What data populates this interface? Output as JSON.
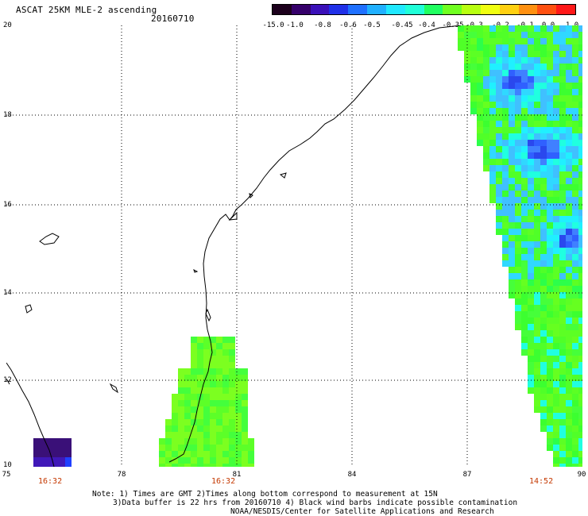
{
  "header": {
    "title": "ASCAT 25KM MLE-2 ascending",
    "date": "20160710"
  },
  "legend": {
    "ticks": [
      "-15.0",
      "-1.0",
      "-0.8",
      "-0.6",
      "-0.5",
      "-0.45",
      "-0.4",
      "-0.35",
      "-0.3",
      "-0.2",
      "-0.1",
      "0.0",
      "1.0"
    ],
    "colors": [
      "#1c001c",
      "#35006a",
      "#3a10b8",
      "#2030e8",
      "#1f70ff",
      "#20b0ff",
      "#20e8ff",
      "#20ffd8",
      "#20ff60",
      "#70ff20",
      "#b8ff10",
      "#f0ff10",
      "#ffd010",
      "#ff9010",
      "#ff5010",
      "#ff1818"
    ]
  },
  "axes": {
    "lon_labels": [
      "75",
      "78",
      "81",
      "84",
      "87",
      "90"
    ],
    "lat_labels": [
      "20",
      "18",
      "16",
      "14",
      "12",
      "10"
    ]
  },
  "pass_times": [
    "16:32",
    "16:32",
    "14:52"
  ],
  "notes": {
    "line1": "Note: 1) Times are GMT 2)Times along bottom correspond to measurement at 15N",
    "line2": "3)Data buffer is 22 hrs from 20160710 4) Black wind barbs indicate possible contamination",
    "line3": "NOAA/NESDIS/Center for Satellite Applications and Research"
  },
  "colors": {
    "pass_time": "#c43800",
    "grid": "#000000",
    "coast": "#000000"
  }
}
